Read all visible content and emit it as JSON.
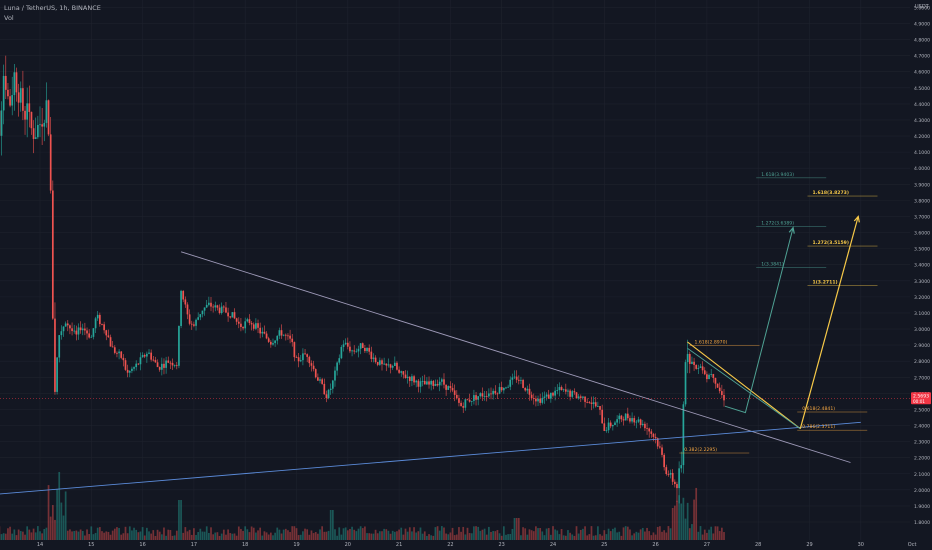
{
  "header": {
    "title": "Luna / TetherUS, 1h, BINANCE",
    "volume_label": "Vol",
    "currency": "USDT"
  },
  "colors": {
    "background": "#131722",
    "grid": "#1e222d",
    "up": "#26a69a",
    "down": "#ef5350",
    "trendline_upper": "#9e9ab8",
    "trendline_lower": "#5b8bd9",
    "fib_orange": "#f5a742",
    "fib_teal": "#4fa294",
    "arrow_yellow": "#f7c948",
    "price_tag": "#f23645"
  },
  "chart_data": {
    "type": "candlestick",
    "symbol": "Luna / TetherUS",
    "interval": "1h",
    "exchange": "BINANCE",
    "ylabel": "USDT",
    "ylim": [
      1.75,
      5.05
    ],
    "y_ticks": [
      "1.8000",
      "1.9000",
      "2.0000",
      "2.1000",
      "2.2000",
      "2.3000",
      "2.4000",
      "2.5000",
      "2.6000",
      "2.7000",
      "2.8000",
      "2.9000",
      "3.0000",
      "3.1000",
      "3.2000",
      "3.3000",
      "3.4000",
      "3.5000",
      "3.6000",
      "3.7000",
      "3.8000",
      "3.9000",
      "4.0000",
      "4.1000",
      "4.2000",
      "4.3000",
      "4.4000",
      "4.5000",
      "4.6000",
      "4.7000",
      "4.8000",
      "4.9000",
      "5.0000"
    ],
    "x_ticks": [
      "14",
      "15",
      "16",
      "17",
      "18",
      "19",
      "20",
      "21",
      "22",
      "23",
      "24",
      "25",
      "26",
      "27",
      "28",
      "29",
      "30",
      "Oct"
    ],
    "price_path": [
      [
        13.0,
        4.4
      ],
      [
        13.1,
        4.55
      ],
      [
        13.2,
        4.22
      ],
      [
        13.3,
        4.62
      ],
      [
        13.4,
        4.38
      ],
      [
        13.5,
        4.58
      ],
      [
        13.6,
        4.46
      ],
      [
        13.7,
        4.32
      ],
      [
        13.75,
        4.44
      ],
      [
        13.8,
        4.25
      ],
      [
        13.9,
        4.22
      ],
      [
        14.0,
        4.28
      ],
      [
        14.15,
        4.42
      ],
      [
        14.2,
        3.95
      ],
      [
        14.25,
        3.1
      ],
      [
        14.3,
        2.55
      ],
      [
        14.35,
        2.95
      ],
      [
        14.5,
        3.05
      ],
      [
        14.7,
        2.95
      ],
      [
        14.8,
        3.02
      ],
      [
        15.0,
        2.95
      ],
      [
        15.1,
        3.08
      ],
      [
        15.3,
        2.98
      ],
      [
        15.4,
        2.88
      ],
      [
        15.6,
        2.82
      ],
      [
        15.7,
        2.72
      ],
      [
        15.9,
        2.78
      ],
      [
        16.1,
        2.86
      ],
      [
        16.3,
        2.76
      ],
      [
        16.5,
        2.8
      ],
      [
        16.7,
        2.78
      ],
      [
        16.72,
        3.3
      ],
      [
        16.8,
        3.18
      ],
      [
        16.9,
        3.05
      ],
      [
        17.0,
        3.02
      ],
      [
        17.15,
        3.12
      ],
      [
        17.3,
        3.15
      ],
      [
        17.5,
        3.12
      ],
      [
        17.7,
        3.1
      ],
      [
        17.9,
        3.02
      ],
      [
        18.1,
        3.05
      ],
      [
        18.3,
        2.98
      ],
      [
        18.5,
        2.92
      ],
      [
        18.7,
        2.98
      ],
      [
        18.9,
        2.92
      ],
      [
        19.0,
        2.8
      ],
      [
        19.2,
        2.85
      ],
      [
        19.4,
        2.7
      ],
      [
        19.6,
        2.58
      ],
      [
        19.7,
        2.66
      ],
      [
        19.8,
        2.78
      ],
      [
        19.9,
        2.92
      ],
      [
        20.1,
        2.86
      ],
      [
        20.3,
        2.9
      ],
      [
        20.5,
        2.82
      ],
      [
        20.7,
        2.76
      ],
      [
        20.9,
        2.78
      ],
      [
        21.0,
        2.72
      ],
      [
        21.2,
        2.7
      ],
      [
        21.4,
        2.66
      ],
      [
        21.6,
        2.65
      ],
      [
        21.8,
        2.68
      ],
      [
        22.0,
        2.62
      ],
      [
        22.2,
        2.52
      ],
      [
        22.3,
        2.55
      ],
      [
        22.5,
        2.58
      ],
      [
        22.7,
        2.6
      ],
      [
        22.9,
        2.62
      ],
      [
        23.1,
        2.65
      ],
      [
        23.3,
        2.7
      ],
      [
        23.5,
        2.62
      ],
      [
        23.7,
        2.56
      ],
      [
        23.9,
        2.58
      ],
      [
        24.1,
        2.62
      ],
      [
        24.3,
        2.6
      ],
      [
        24.5,
        2.58
      ],
      [
        24.7,
        2.56
      ],
      [
        24.9,
        2.5
      ],
      [
        25.0,
        2.38
      ],
      [
        25.2,
        2.42
      ],
      [
        25.4,
        2.46
      ],
      [
        25.6,
        2.44
      ],
      [
        25.8,
        2.4
      ],
      [
        26.0,
        2.32
      ],
      [
        26.1,
        2.24
      ],
      [
        26.2,
        2.12
      ],
      [
        26.3,
        2.08
      ],
      [
        26.4,
        2.02
      ],
      [
        26.5,
        2.12
      ],
      [
        26.55,
        2.6
      ],
      [
        26.6,
        2.92
      ],
      [
        26.7,
        2.8
      ],
      [
        26.8,
        2.74
      ],
      [
        26.9,
        2.78
      ],
      [
        27.0,
        2.7
      ],
      [
        27.1,
        2.74
      ],
      [
        27.2,
        2.65
      ],
      [
        27.3,
        2.58
      ],
      [
        27.35,
        2.57
      ]
    ],
    "current_price": "2.5693",
    "current_time": "00:01",
    "drawings": {
      "upper_trendline": [
        [
          16.75,
          3.48
        ],
        [
          29.8,
          2.17
        ]
      ],
      "lower_trendline": [
        [
          12.3,
          1.95
        ],
        [
          30.0,
          2.42
        ]
      ],
      "wedge_upper": [
        [
          26.62,
          2.92
        ],
        [
          28.82,
          2.38
        ]
      ],
      "wedge_lower": [
        [
          26.62,
          2.88
        ],
        [
          28.82,
          2.38
        ]
      ],
      "arrow_teal": [
        [
          27.35,
          2.52
        ],
        [
          27.75,
          2.48
        ],
        [
          28.68,
          3.63
        ]
      ],
      "arrow_yellow": [
        [
          28.82,
          2.38
        ],
        [
          29.95,
          3.7
        ]
      ]
    },
    "fib_labels": [
      {
        "text": "1.618(2.8970)",
        "x": 26.7,
        "y": 2.897,
        "color": "orange"
      },
      {
        "text": "0.618(2.4841)",
        "x": 28.8,
        "y": 2.484,
        "color": "orange"
      },
      {
        "text": "0.786(2.3711)",
        "x": 28.8,
        "y": 2.371,
        "color": "orange"
      },
      {
        "text": "0.382(2.2295)",
        "x": 26.5,
        "y": 2.229,
        "color": "orange"
      },
      {
        "text": "1.618(3.9403)",
        "x": 28.0,
        "y": 3.94,
        "color": "teal"
      },
      {
        "text": "1.272(3.6389)",
        "x": 28.0,
        "y": 3.639,
        "color": "teal"
      },
      {
        "text": "1(3.3841)",
        "x": 28.0,
        "y": 3.384,
        "color": "teal"
      },
      {
        "text": "1.618(3.8273)",
        "x": 29.0,
        "y": 3.827,
        "color": "yellow"
      },
      {
        "text": "1.272(3.5159)",
        "x": 29.0,
        "y": 3.516,
        "color": "yellow"
      },
      {
        "text": "1(3.2711)",
        "x": 29.0,
        "y": 3.271,
        "color": "yellow"
      }
    ]
  }
}
